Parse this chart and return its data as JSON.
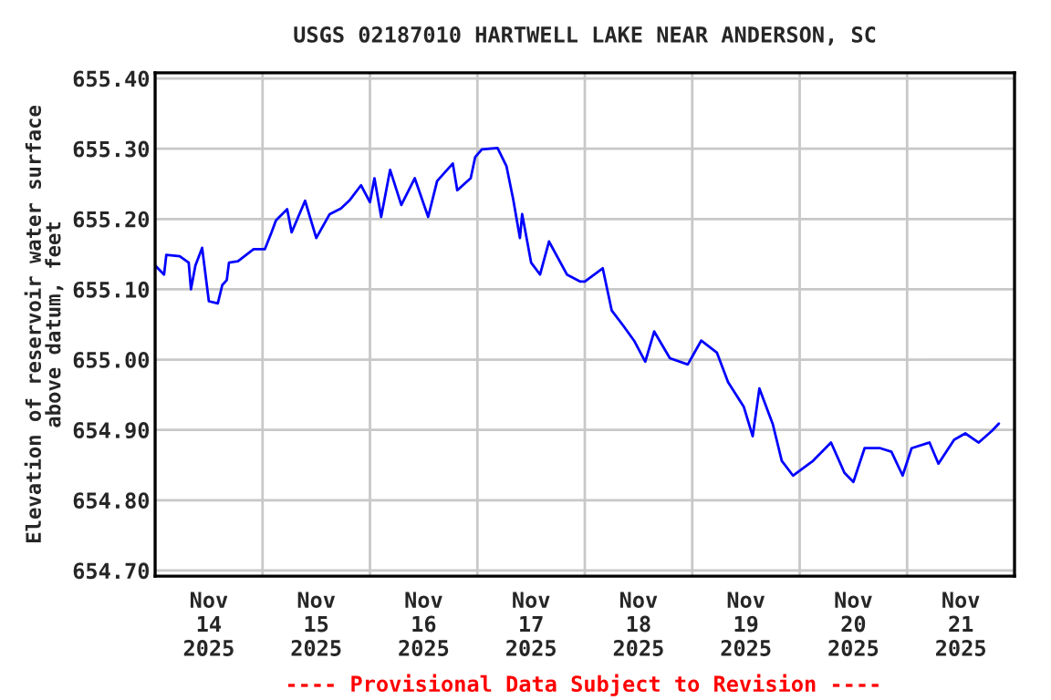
{
  "chart_data": {
    "type": "line",
    "title": "USGS 02187010 HARTWELL LAKE NEAR ANDERSON, SC",
    "ylabel": "Elevation of reservoir water surface\nabove datum, feet",
    "annotations": [
      "---- Provisional Data Subject to Revision ----"
    ],
    "x": [
      "2025-11-14T00:00",
      "2025-11-14T02:00",
      "2025-11-14T02:30",
      "2025-11-14T05:30",
      "2025-11-14T07:30",
      "2025-11-14T08:00",
      "2025-11-14T09:00",
      "2025-11-14T10:30",
      "2025-11-14T12:00",
      "2025-11-14T14:00",
      "2025-11-14T15:00",
      "2025-11-14T16:00",
      "2025-11-14T16:30",
      "2025-11-14T18:30",
      "2025-11-14T22:00",
      "2025-11-15T00:30",
      "2025-11-15T02:00",
      "2025-11-15T03:00",
      "2025-11-15T05:30",
      "2025-11-15T06:30",
      "2025-11-15T09:30",
      "2025-11-15T12:00",
      "2025-11-15T15:00",
      "2025-11-15T17:30",
      "2025-11-15T19:30",
      "2025-11-15T22:00",
      "2025-11-16T00:00",
      "2025-11-16T01:00",
      "2025-11-16T02:30",
      "2025-11-16T04:30",
      "2025-11-16T07:00",
      "2025-11-16T10:00",
      "2025-11-16T13:00",
      "2025-11-16T15:00",
      "2025-11-16T18:30",
      "2025-11-16T19:30",
      "2025-11-16T22:30",
      "2025-11-16T23:30",
      "2025-11-17T01:00",
      "2025-11-17T04:30",
      "2025-11-17T06:30",
      "2025-11-17T08:00",
      "2025-11-17T09:30",
      "2025-11-17T10:00",
      "2025-11-17T12:00",
      "2025-11-17T14:00",
      "2025-11-17T16:00",
      "2025-11-17T20:00",
      "2025-11-17T23:00",
      "2025-11-18T00:00",
      "2025-11-18T04:00",
      "2025-11-18T06:00",
      "2025-11-18T08:30",
      "2025-11-18T11:00",
      "2025-11-18T13:30",
      "2025-11-18T15:30",
      "2025-11-18T19:00",
      "2025-11-18T23:00",
      "2025-11-19T02:00",
      "2025-11-19T05:30",
      "2025-11-19T08:00",
      "2025-11-19T11:30",
      "2025-11-19T13:30",
      "2025-11-19T15:00",
      "2025-11-19T18:00",
      "2025-11-19T20:00",
      "2025-11-19T22:30",
      "2025-11-20T03:00",
      "2025-11-20T07:00",
      "2025-11-20T10:00",
      "2025-11-20T12:00",
      "2025-11-20T14:30",
      "2025-11-20T18:00",
      "2025-11-20T20:30",
      "2025-11-20T23:00",
      "2025-11-21T01:00",
      "2025-11-21T05:00",
      "2025-11-21T07:00",
      "2025-11-21T10:30",
      "2025-11-21T13:00",
      "2025-11-21T16:00",
      "2025-11-21T19:00",
      "2025-11-21T20:30"
    ],
    "series": [
      {
        "color": "#0000ff",
        "values": [
          655.134,
          655.121,
          655.149,
          655.147,
          655.138,
          655.1,
          655.134,
          655.159,
          655.083,
          655.08,
          655.106,
          655.113,
          655.138,
          655.14,
          655.157,
          655.157,
          655.181,
          655.198,
          655.214,
          655.181,
          655.226,
          655.173,
          655.207,
          655.215,
          655.227,
          655.248,
          655.224,
          655.258,
          655.203,
          655.27,
          655.22,
          655.258,
          655.203,
          655.254,
          655.279,
          655.241,
          655.258,
          655.288,
          655.299,
          655.301,
          655.275,
          655.228,
          655.173,
          655.207,
          655.138,
          655.121,
          655.168,
          655.121,
          655.111,
          655.111,
          655.13,
          655.07,
          655.049,
          655.027,
          654.997,
          655.04,
          655.002,
          654.993,
          655.027,
          655.01,
          654.968,
          654.933,
          654.891,
          654.959,
          654.908,
          654.856,
          654.835,
          654.856,
          654.882,
          654.839,
          654.826,
          654.874,
          654.874,
          654.869,
          654.835,
          654.874,
          654.882,
          654.852,
          654.886,
          654.895,
          654.882,
          654.899,
          654.909
        ]
      }
    ],
    "xlim": [
      "2025-11-14T00:00",
      "2025-11-22T00:00"
    ],
    "xticks": [
      {
        "value": "2025-11-14T12:00",
        "label": "Nov\n14\n2025"
      },
      {
        "value": "2025-11-15T00:00",
        "label": null
      },
      {
        "value": "2025-11-15T12:00",
        "label": "Nov\n15\n2025"
      },
      {
        "value": "2025-11-16T00:00",
        "label": null
      },
      {
        "value": "2025-11-16T12:00",
        "label": "Nov\n16\n2025"
      },
      {
        "value": "2025-11-17T00:00",
        "label": null
      },
      {
        "value": "2025-11-17T12:00",
        "label": "Nov\n17\n2025"
      },
      {
        "value": "2025-11-18T00:00",
        "label": null
      },
      {
        "value": "2025-11-18T12:00",
        "label": "Nov\n18\n2025"
      },
      {
        "value": "2025-11-19T00:00",
        "label": null
      },
      {
        "value": "2025-11-19T12:00",
        "label": "Nov\n19\n2025"
      },
      {
        "value": "2025-11-20T00:00",
        "label": null
      },
      {
        "value": "2025-11-20T12:00",
        "label": "Nov\n20\n2025"
      },
      {
        "value": "2025-11-21T00:00",
        "label": null
      },
      {
        "value": "2025-11-21T12:00",
        "label": "Nov\n21\n2025"
      }
    ],
    "ylim": [
      654.692,
      655.408
    ],
    "yticks": [
      {
        "value": 654.7,
        "label": "654.70"
      },
      {
        "value": 654.8,
        "label": "654.80"
      },
      {
        "value": 654.9,
        "label": "654.90"
      },
      {
        "value": 655.0,
        "label": "655.00"
      },
      {
        "value": 655.1,
        "label": "655.10"
      },
      {
        "value": 655.2,
        "label": "655.20"
      },
      {
        "value": 655.3,
        "label": "655.30"
      },
      {
        "value": 655.4,
        "label": "655.40"
      }
    ],
    "grid": true,
    "line_style": "solid",
    "marker": "none",
    "legend": false
  }
}
